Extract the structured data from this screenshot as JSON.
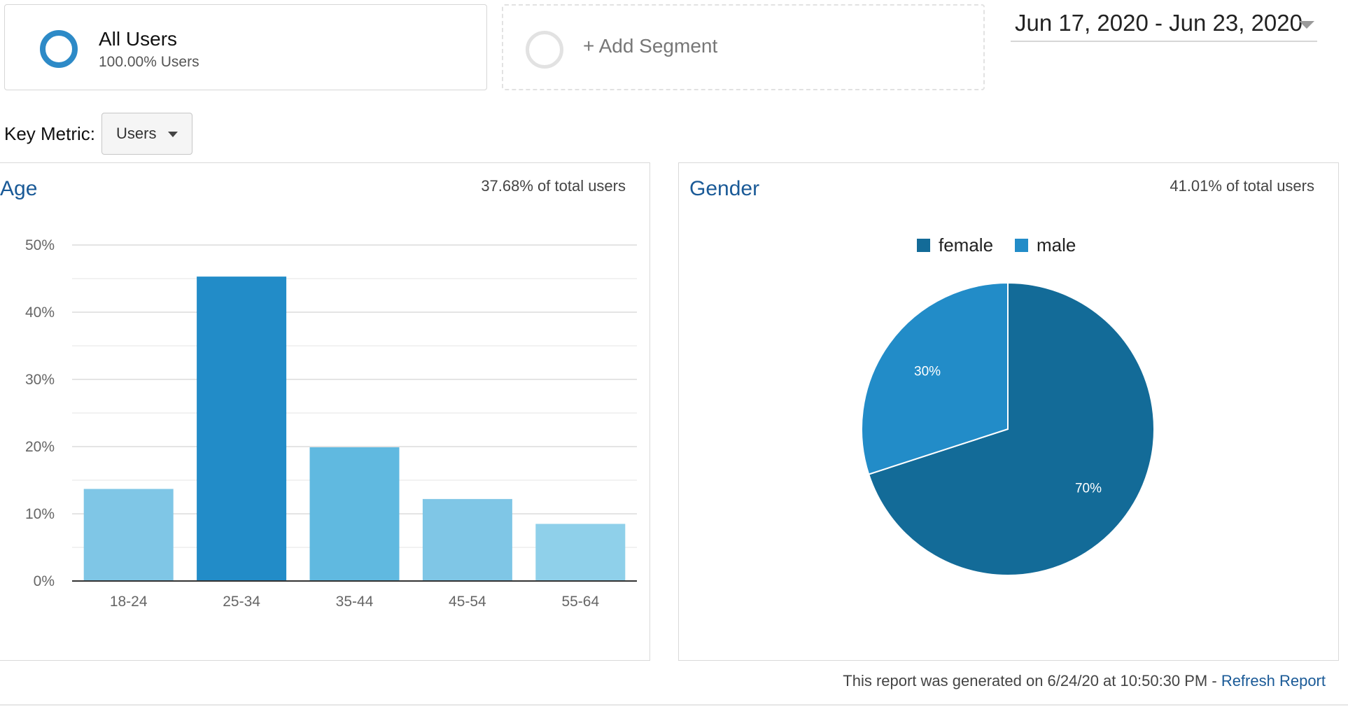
{
  "segments": {
    "all_users": {
      "name": "All Users",
      "subtitle": "100.00% Users",
      "color": "#2d8ac7"
    },
    "add_segment": {
      "label": "+ Add Segment"
    }
  },
  "date_range": {
    "text": "Jun 17, 2020 - Jun 23, 2020"
  },
  "key_metric": {
    "label": "Key Metric:",
    "value": "Users"
  },
  "age": {
    "title": "Age",
    "share": "37.68% of total users"
  },
  "gender": {
    "title": "Gender",
    "share": "41.01% of total users"
  },
  "footer": {
    "text": "This report was generated on 6/24/20 at 10:50:30 PM - ",
    "refresh_label": "Refresh Report"
  },
  "chart_data": [
    {
      "type": "bar",
      "title": "Age",
      "categories": [
        "18-24",
        "25-34",
        "35-44",
        "45-54",
        "55-64"
      ],
      "values": [
        13.7,
        45.3,
        19.9,
        12.2,
        8.5
      ],
      "colors": [
        "#7fc6e6",
        "#228cc8",
        "#60b9e0",
        "#7fc6e6",
        "#8fd0ea"
      ],
      "ylim": [
        0,
        50
      ],
      "y_ticks": [
        "0%",
        "10%",
        "20%",
        "30%",
        "40%",
        "50%"
      ],
      "grid": true
    },
    {
      "type": "pie",
      "title": "Gender",
      "legend": "top",
      "slices": [
        {
          "name": "female",
          "value": 70,
          "label": "70%",
          "color": "#136b98"
        },
        {
          "name": "male",
          "value": 30,
          "label": "30%",
          "color": "#228cc8"
        }
      ]
    }
  ]
}
